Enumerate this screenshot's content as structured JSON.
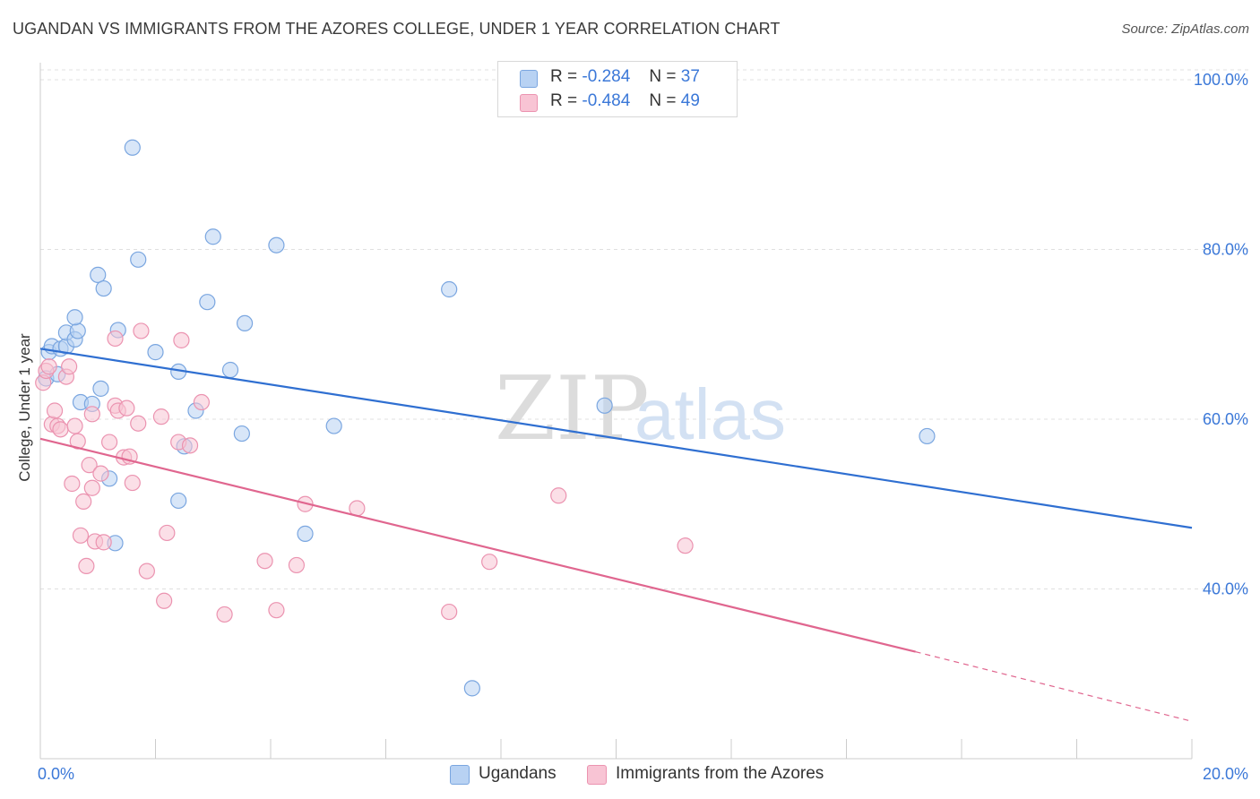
{
  "title": "UGANDAN VS IMMIGRANTS FROM THE AZORES COLLEGE, UNDER 1 YEAR CORRELATION CHART",
  "source": "Source: ZipAtlas.com",
  "watermark": {
    "zip": "ZIP",
    "atlas": "atlas"
  },
  "legend": {
    "rows": [
      {
        "r_label": "R =",
        "r_value": "-0.284",
        "n_label": "N =",
        "n_value": "37"
      },
      {
        "r_label": "R =",
        "r_value": "-0.484",
        "n_label": "N =",
        "n_value": "49"
      }
    ]
  },
  "bottom_legend": {
    "ugandans": "Ugandans",
    "azores": "Immigrants from the Azores"
  },
  "colors": {
    "blue_fill": "#b8d2f3",
    "blue_stroke": "#7aa6e0",
    "blue_line": "#2f6fd1",
    "pink_fill": "#f8c4d4",
    "pink_stroke": "#eb93b0",
    "pink_line": "#e0668f",
    "axis_text": "#3b78d8",
    "grid": "#e0e0e0"
  },
  "chart_data": {
    "type": "scatter",
    "title": "UGANDAN VS IMMIGRANTS FROM THE AZORES COLLEGE, UNDER 1 YEAR CORRELATION CHART",
    "xlabel": "",
    "ylabel": "College, Under 1 year",
    "xlim": [
      0,
      20
    ],
    "ylim": [
      20,
      102
    ],
    "x_tick_labels": [
      "0.0%",
      "20.0%"
    ],
    "y_ticks": [
      40,
      60,
      80,
      100
    ],
    "y_tick_labels": [
      "40.0%",
      "60.0%",
      "80.0%",
      "100.0%"
    ],
    "grid": true,
    "series": [
      {
        "name": "Ugandans",
        "color": "#b8d2f3",
        "points": [
          [
            0.1,
            64.8
          ],
          [
            0.15,
            67.9
          ],
          [
            0.2,
            68.6
          ],
          [
            0.3,
            65.3
          ],
          [
            0.35,
            68.3
          ],
          [
            0.45,
            68.6
          ],
          [
            0.45,
            70.2
          ],
          [
            0.6,
            69.4
          ],
          [
            0.65,
            70.4
          ],
          [
            0.6,
            72.0
          ],
          [
            0.7,
            62.0
          ],
          [
            0.9,
            61.8
          ],
          [
            1.0,
            77.0
          ],
          [
            1.05,
            63.6
          ],
          [
            1.1,
            75.4
          ],
          [
            1.2,
            53.0
          ],
          [
            1.3,
            45.4
          ],
          [
            1.35,
            70.5
          ],
          [
            1.6,
            92.0
          ],
          [
            1.7,
            78.8
          ],
          [
            2.0,
            67.9
          ],
          [
            2.4,
            65.6
          ],
          [
            2.4,
            50.4
          ],
          [
            2.5,
            56.8
          ],
          [
            2.7,
            61.0
          ],
          [
            2.9,
            73.8
          ],
          [
            3.0,
            81.5
          ],
          [
            3.3,
            65.8
          ],
          [
            3.5,
            58.3
          ],
          [
            3.55,
            71.3
          ],
          [
            4.1,
            80.5
          ],
          [
            4.6,
            46.5
          ],
          [
            5.1,
            59.2
          ],
          [
            7.1,
            75.3
          ],
          [
            7.5,
            28.3
          ],
          [
            9.8,
            61.6
          ],
          [
            15.4,
            58.0
          ]
        ],
        "trend": [
          [
            0,
            68.3
          ],
          [
            20,
            47.2
          ]
        ]
      },
      {
        "name": "Immigrants from the Azores",
        "color": "#f8c4d4",
        "points": [
          [
            0.05,
            64.3
          ],
          [
            0.1,
            65.7
          ],
          [
            0.15,
            66.2
          ],
          [
            0.2,
            59.4
          ],
          [
            0.25,
            61.0
          ],
          [
            0.3,
            59.2
          ],
          [
            0.35,
            58.8
          ],
          [
            0.45,
            65.0
          ],
          [
            0.5,
            66.2
          ],
          [
            0.55,
            52.4
          ],
          [
            0.6,
            59.2
          ],
          [
            0.65,
            57.4
          ],
          [
            0.7,
            46.3
          ],
          [
            0.75,
            50.3
          ],
          [
            0.8,
            42.7
          ],
          [
            0.85,
            54.6
          ],
          [
            0.9,
            60.6
          ],
          [
            0.9,
            51.9
          ],
          [
            0.95,
            45.6
          ],
          [
            1.05,
            53.6
          ],
          [
            1.1,
            45.5
          ],
          [
            1.2,
            57.3
          ],
          [
            1.3,
            69.5
          ],
          [
            1.3,
            61.6
          ],
          [
            1.35,
            61.0
          ],
          [
            1.45,
            55.5
          ],
          [
            1.5,
            61.3
          ],
          [
            1.55,
            55.6
          ],
          [
            1.6,
            52.5
          ],
          [
            1.7,
            59.5
          ],
          [
            1.75,
            70.4
          ],
          [
            1.85,
            42.1
          ],
          [
            2.1,
            60.3
          ],
          [
            2.15,
            38.6
          ],
          [
            2.2,
            46.6
          ],
          [
            2.4,
            57.3
          ],
          [
            2.45,
            69.3
          ],
          [
            2.6,
            56.9
          ],
          [
            2.8,
            62.0
          ],
          [
            3.2,
            37.0
          ],
          [
            3.9,
            43.3
          ],
          [
            4.1,
            37.5
          ],
          [
            4.45,
            42.8
          ],
          [
            4.6,
            50.0
          ],
          [
            5.5,
            49.5
          ],
          [
            7.1,
            37.3
          ],
          [
            7.8,
            43.2
          ],
          [
            9.0,
            51.0
          ],
          [
            11.2,
            45.1
          ]
        ],
        "trend": [
          [
            0,
            57.7
          ],
          [
            15.2,
            32.6
          ]
        ],
        "trend_dashed": [
          [
            15.2,
            32.6
          ],
          [
            20,
            24.4
          ]
        ]
      }
    ]
  }
}
